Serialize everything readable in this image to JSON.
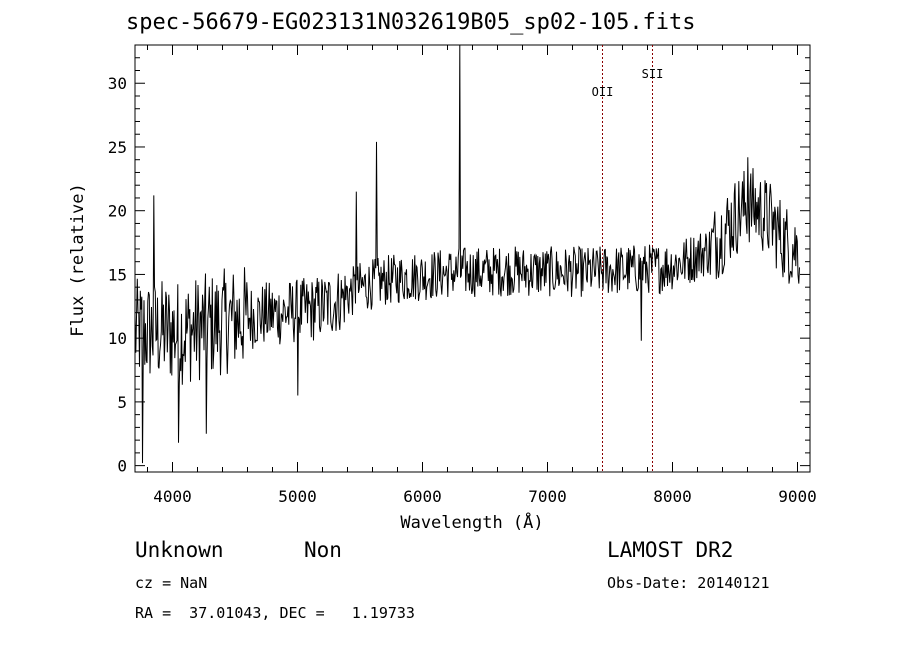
{
  "chart_data": {
    "type": "line",
    "title": "spec-56679-EG023131N032619B05_sp02-105.fits",
    "xlabel": "Wavelength (Å)",
    "ylabel": "Flux (relative)",
    "xlim": [
      3700,
      9100
    ],
    "ylim": [
      -0.5,
      33
    ],
    "xticks": [
      4000,
      5000,
      6000,
      7000,
      8000,
      9000
    ],
    "yticks": [
      0,
      5,
      10,
      15,
      20,
      25,
      30
    ],
    "grid": false,
    "line_color": "#000000",
    "marker_color": "#8b0000",
    "continuum_x": [
      3700,
      3900,
      4100,
      4300,
      4500,
      4700,
      4900,
      5100,
      5300,
      5500,
      5700,
      5900,
      6100,
      6300,
      6500,
      6700,
      6900,
      7100,
      7300,
      7500,
      7700,
      7900,
      8100,
      8300,
      8500,
      8600,
      8700,
      8800,
      8900,
      9000
    ],
    "continuum_y": [
      10.5,
      10.5,
      10.5,
      11.0,
      11.5,
      11.8,
      12.0,
      12.2,
      12.8,
      14.0,
      14.5,
      14.8,
      15.0,
      15.2,
      15.2,
      15.3,
      15.2,
      15.2,
      15.2,
      15.3,
      15.4,
      15.5,
      16.0,
      17.0,
      19.5,
      20.5,
      20.0,
      19.0,
      17.5,
      17.0
    ],
    "features": [
      {
        "x": 6300,
        "y": 33.0
      },
      {
        "x": 5630,
        "y": 25.4
      },
      {
        "x": 5470,
        "y": 21.5
      },
      {
        "x": 4270,
        "y": 2.5
      },
      {
        "x": 4050,
        "y": 1.8
      },
      {
        "x": 5000,
        "y": 5.5
      },
      {
        "x": 7750,
        "y": 9.8
      },
      {
        "x": 8600,
        "y": 24.2
      },
      {
        "x": 3760,
        "y": 0.2
      },
      {
        "x": 3850,
        "y": 21.2
      }
    ],
    "line_markers": [
      {
        "label": "OII",
        "x": 7440
      },
      {
        "label": "SII",
        "x": 7840
      }
    ]
  },
  "info": {
    "class": "Unknown",
    "subclass": "Non",
    "survey": "LAMOST DR2",
    "cz": "cz = NaN",
    "obs_date": "Obs-Date: 20140121",
    "coords": "RA =  37.01043, DEC =   1.19733"
  }
}
